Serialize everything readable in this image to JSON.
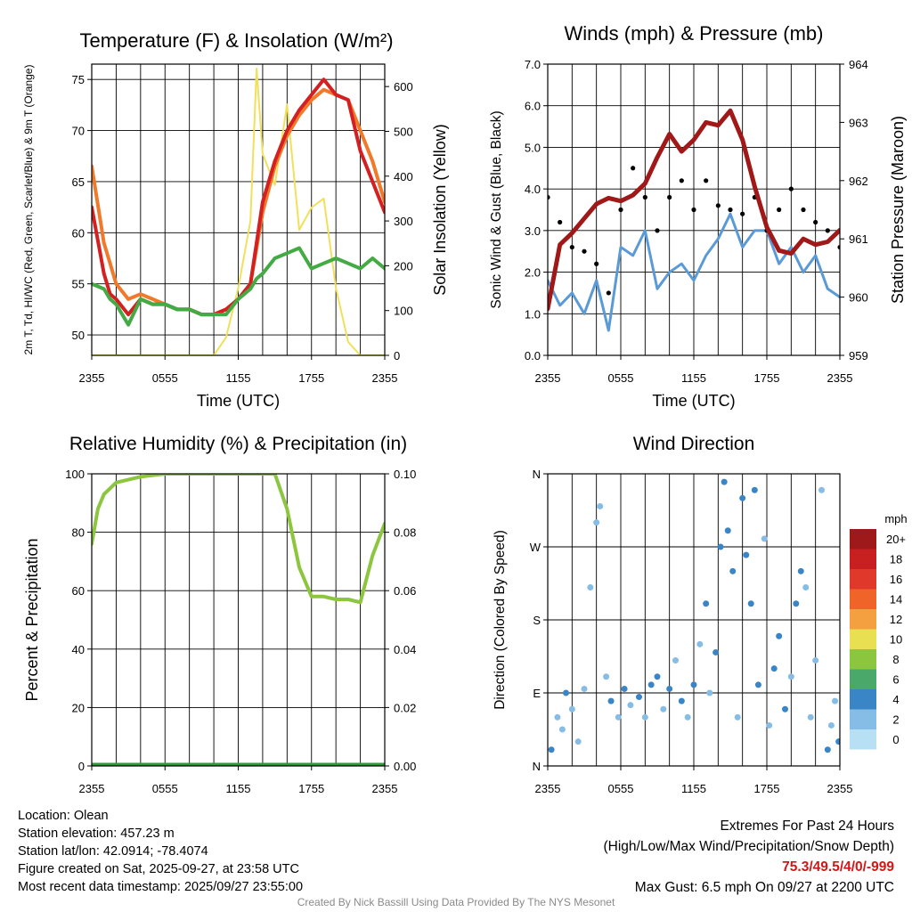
{
  "chart_data": [
    {
      "id": "temperature",
      "type": "line",
      "title": "Temperature (F) & Insolation (W/m²)",
      "xlabel": "Time (UTC)",
      "ylabel": "2m T, Td, HI/WC (Red, Green, Scarlet/Blue) & 9m T (Orange)",
      "y2label": "Solar Insolation (Yellow)",
      "x_ticks": [
        "2355",
        "0555",
        "1155",
        "1755",
        "2355"
      ],
      "y_ticks": [
        "50",
        "55",
        "60",
        "65",
        "70",
        "75"
      ],
      "y2_ticks": [
        "0",
        "100",
        "200",
        "300",
        "400",
        "500",
        "600"
      ],
      "ylim": [
        48,
        76.5
      ],
      "y2lim": [
        0,
        650
      ],
      "x_hours": [
        0,
        1,
        1.5,
        2,
        3,
        4,
        5,
        6,
        7,
        8,
        9,
        10,
        11,
        12,
        13,
        13.5,
        14,
        15,
        16,
        17,
        18,
        19,
        20,
        21,
        22,
        23,
        24
      ],
      "series": [
        {
          "name": "2m T",
          "color": "#d42020",
          "axis": "left",
          "values": [
            62.5,
            56,
            54,
            53.5,
            52,
            53.5,
            53,
            53,
            52.5,
            52.5,
            52,
            52,
            52.5,
            53.5,
            55,
            59,
            63,
            67,
            70,
            72,
            73.5,
            75,
            73.5,
            73,
            68,
            65,
            62
          ]
        },
        {
          "name": "9m T",
          "color": "#f07a2a",
          "axis": "left",
          "values": [
            66.5,
            59,
            57,
            55,
            53.5,
            54,
            53.5,
            53,
            52.5,
            52.5,
            52,
            52,
            52.5,
            53.5,
            55,
            58.5,
            62,
            66.5,
            69.5,
            71.5,
            73,
            74,
            73.5,
            73,
            70,
            67,
            63
          ]
        },
        {
          "name": "Td",
          "color": "#44aa44",
          "axis": "left",
          "values": [
            55,
            54.5,
            53.5,
            53,
            51,
            53.5,
            53,
            53,
            52.5,
            52.5,
            52,
            52,
            52,
            53.5,
            54.5,
            55.5,
            56,
            57.5,
            58,
            58.5,
            56.5,
            57,
            57.5,
            57,
            56.5,
            57.5,
            56.5
          ]
        },
        {
          "name": "Solar Insolation",
          "color": "#f0e05a",
          "axis": "right",
          "values": [
            0,
            0,
            0,
            0,
            0,
            0,
            0,
            0,
            0,
            0,
            0,
            0,
            40,
            150,
            300,
            640,
            450,
            380,
            560,
            280,
            330,
            350,
            150,
            30,
            0,
            0,
            0
          ]
        }
      ]
    },
    {
      "id": "winds",
      "type": "line",
      "title": "Winds (mph) & Pressure (mb)",
      "xlabel": "Time (UTC)",
      "ylabel": "Sonic Wind & Gust (Blue, Black)",
      "y2label": "Station Pressure (Maroon)",
      "x_ticks": [
        "2355",
        "0555",
        "1155",
        "1755",
        "2355"
      ],
      "y_ticks": [
        "0.0",
        "1.0",
        "2.0",
        "3.0",
        "4.0",
        "5.0",
        "6.0",
        "7.0"
      ],
      "y2_ticks": [
        "959",
        "960",
        "961",
        "962",
        "963",
        "964"
      ],
      "ylim": [
        0,
        7
      ],
      "y2lim": [
        959,
        964
      ],
      "x_hours": [
        0,
        1,
        2,
        3,
        4,
        5,
        6,
        7,
        8,
        9,
        10,
        11,
        12,
        13,
        14,
        15,
        16,
        17,
        18,
        19,
        20,
        21,
        22,
        23,
        24
      ],
      "series": [
        {
          "name": "Sonic Wind",
          "color": "#5a9ad6",
          "axis": "left",
          "values": [
            1.8,
            1.2,
            1.5,
            1.0,
            1.8,
            0.6,
            2.6,
            2.4,
            3.0,
            1.6,
            2.0,
            2.2,
            1.8,
            2.4,
            2.8,
            3.4,
            2.6,
            3.0,
            3.0,
            2.2,
            2.6,
            2.0,
            2.4,
            1.6,
            1.4
          ]
        },
        {
          "name": "Gust",
          "color": "#000000",
          "axis": "left",
          "values": [
            3.8,
            3.2,
            2.6,
            2.5,
            2.2,
            1.5,
            3.5,
            4.5,
            3.8,
            3.0,
            3.8,
            4.2,
            3.5,
            4.2,
            3.6,
            3.5,
            3.4,
            3.8,
            3.0,
            3.5,
            4.0,
            3.5,
            3.2,
            3.0,
            2.6
          ]
        },
        {
          "name": "Station Pressure",
          "color": "#a01818",
          "axis": "right",
          "values": [
            959.8,
            960.9,
            961.1,
            961.35,
            961.6,
            961.7,
            961.65,
            961.75,
            961.95,
            962.4,
            962.8,
            962.5,
            962.7,
            963.0,
            962.95,
            963.2,
            962.7,
            961.9,
            961.2,
            960.8,
            960.75,
            961.0,
            960.9,
            960.95,
            961.15
          ]
        }
      ]
    },
    {
      "id": "humidity",
      "type": "line",
      "title": "Relative Humidity (%) & Precipitation (in)",
      "xlabel": "",
      "ylabel": "Percent & Precipitation",
      "x_ticks": [
        "2355",
        "0555",
        "1155",
        "1755",
        "2355"
      ],
      "y_ticks": [
        "0",
        "20",
        "40",
        "60",
        "80",
        "100"
      ],
      "y2_ticks": [
        "0.00",
        "0.02",
        "0.04",
        "0.06",
        "0.08",
        "0.10"
      ],
      "ylim": [
        0,
        100
      ],
      "y2lim": [
        0,
        0.1
      ],
      "x_hours": [
        0,
        0.5,
        1,
        2,
        3,
        4,
        5,
        6,
        8,
        10,
        12,
        14,
        15,
        16,
        17,
        18,
        19,
        20,
        21,
        22,
        23,
        24
      ],
      "series": [
        {
          "name": "Relative Humidity",
          "color": "#8cc63f",
          "axis": "left",
          "values": [
            76,
            88,
            93,
            97,
            98,
            99,
            99.5,
            100,
            100,
            100,
            100,
            100,
            100,
            88,
            68,
            58,
            58,
            57,
            57,
            56,
            72,
            83
          ]
        },
        {
          "name": "Precipitation",
          "color": "#2e9a3a",
          "axis": "right",
          "values": [
            0,
            0,
            0,
            0,
            0,
            0,
            0,
            0,
            0,
            0,
            0,
            0,
            0,
            0,
            0,
            0,
            0,
            0,
            0,
            0,
            0,
            0
          ]
        }
      ]
    },
    {
      "id": "direction",
      "type": "scatter",
      "title": "Wind Direction",
      "xlabel": "",
      "ylabel": "Direction (Colored By Speed)",
      "x_ticks": [
        "2355",
        "0555",
        "1155",
        "1755",
        "2355"
      ],
      "y_ticks": [
        "N",
        "E",
        "S",
        "W",
        "N"
      ],
      "ylim": [
        0,
        360
      ],
      "legend_title": "mph",
      "legend_levels": [
        "20+",
        "18",
        "16",
        "14",
        "12",
        "10",
        "8",
        "6",
        "4",
        "2",
        "0"
      ],
      "legend_colors": [
        "#9e1a1a",
        "#c82020",
        "#e0382a",
        "#f0642a",
        "#f5a040",
        "#e8e050",
        "#8cc63f",
        "#4aa86a",
        "#3a85c6",
        "#86bde6",
        "#b8e0f5"
      ],
      "points": [
        {
          "hour": 0.3,
          "dir": 20,
          "speed": 3
        },
        {
          "hour": 0.8,
          "dir": 60,
          "speed": 2
        },
        {
          "hour": 1.2,
          "dir": 45,
          "speed": 1
        },
        {
          "hour": 1.5,
          "dir": 90,
          "speed": 3
        },
        {
          "hour": 2.0,
          "dir": 70,
          "speed": 2
        },
        {
          "hour": 2.5,
          "dir": 30,
          "speed": 1
        },
        {
          "hour": 3.0,
          "dir": 95,
          "speed": 2
        },
        {
          "hour": 3.5,
          "dir": 220,
          "speed": 1
        },
        {
          "hour": 4.0,
          "dir": 300,
          "speed": 1
        },
        {
          "hour": 4.3,
          "dir": 320,
          "speed": 1
        },
        {
          "hour": 4.8,
          "dir": 110,
          "speed": 2
        },
        {
          "hour": 5.2,
          "dir": 80,
          "speed": 3
        },
        {
          "hour": 5.8,
          "dir": 60,
          "speed": 2
        },
        {
          "hour": 6.3,
          "dir": 95,
          "speed": 3
        },
        {
          "hour": 6.8,
          "dir": 75,
          "speed": 2
        },
        {
          "hour": 7.5,
          "dir": 85,
          "speed": 3
        },
        {
          "hour": 8.0,
          "dir": 60,
          "speed": 2
        },
        {
          "hour": 8.5,
          "dir": 100,
          "speed": 3
        },
        {
          "hour": 9.0,
          "dir": 110,
          "speed": 3
        },
        {
          "hour": 9.5,
          "dir": 70,
          "speed": 2
        },
        {
          "hour": 10.0,
          "dir": 95,
          "speed": 3
        },
        {
          "hour": 10.5,
          "dir": 130,
          "speed": 2
        },
        {
          "hour": 11.0,
          "dir": 80,
          "speed": 3
        },
        {
          "hour": 11.5,
          "dir": 60,
          "speed": 2
        },
        {
          "hour": 12.0,
          "dir": 100,
          "speed": 3
        },
        {
          "hour": 12.5,
          "dir": 150,
          "speed": 2
        },
        {
          "hour": 13.0,
          "dir": 200,
          "speed": 3
        },
        {
          "hour": 13.3,
          "dir": 90,
          "speed": 2
        },
        {
          "hour": 13.8,
          "dir": 140,
          "speed": 3
        },
        {
          "hour": 14.2,
          "dir": 270,
          "speed": 3
        },
        {
          "hour": 14.5,
          "dir": 350,
          "speed": 3
        },
        {
          "hour": 14.8,
          "dir": 290,
          "speed": 3
        },
        {
          "hour": 15.2,
          "dir": 240,
          "speed": 3
        },
        {
          "hour": 15.6,
          "dir": 60,
          "speed": 2
        },
        {
          "hour": 16.0,
          "dir": 330,
          "speed": 3
        },
        {
          "hour": 16.3,
          "dir": 260,
          "speed": 3
        },
        {
          "hour": 16.7,
          "dir": 200,
          "speed": 3
        },
        {
          "hour": 17.0,
          "dir": 340,
          "speed": 3
        },
        {
          "hour": 17.3,
          "dir": 100,
          "speed": 3
        },
        {
          "hour": 17.8,
          "dir": 280,
          "speed": 2
        },
        {
          "hour": 18.2,
          "dir": 50,
          "speed": 2
        },
        {
          "hour": 18.6,
          "dir": 120,
          "speed": 3
        },
        {
          "hour": 19.0,
          "dir": 160,
          "speed": 3
        },
        {
          "hour": 19.5,
          "dir": 70,
          "speed": 3
        },
        {
          "hour": 20.0,
          "dir": 110,
          "speed": 2
        },
        {
          "hour": 20.4,
          "dir": 200,
          "speed": 3
        },
        {
          "hour": 20.8,
          "dir": 240,
          "speed": 3
        },
        {
          "hour": 21.2,
          "dir": 220,
          "speed": 2
        },
        {
          "hour": 21.6,
          "dir": 60,
          "speed": 2
        },
        {
          "hour": 22.0,
          "dir": 130,
          "speed": 1
        },
        {
          "hour": 22.5,
          "dir": 340,
          "speed": 1
        },
        {
          "hour": 23.0,
          "dir": 20,
          "speed": 3
        },
        {
          "hour": 23.3,
          "dir": 50,
          "speed": 2
        },
        {
          "hour": 23.6,
          "dir": 80,
          "speed": 2
        },
        {
          "hour": 23.9,
          "dir": 30,
          "speed": 3
        }
      ]
    }
  ],
  "footer": {
    "location": "Location: Olean",
    "elevation": "Station elevation: 457.23 m",
    "latlon": "Station lat/lon: 42.0914; -78.4074",
    "created": "Figure created on Sat, 2025-09-27, at 23:58 UTC",
    "recent": "Most recent data timestamp: 2025/09/27 23:55:00",
    "extremes_title": "Extremes For Past 24 Hours",
    "extremes_legend": "(High/Low/Max Wind/Precipitation/Snow Depth)",
    "extremes_values": "75.3/49.5/4/0/-999",
    "max_gust": "Max Gust: 6.5 mph On 09/27 at 2200 UTC",
    "credit": "Created By Nick Bassill Using Data Provided By The NYS Mesonet"
  }
}
